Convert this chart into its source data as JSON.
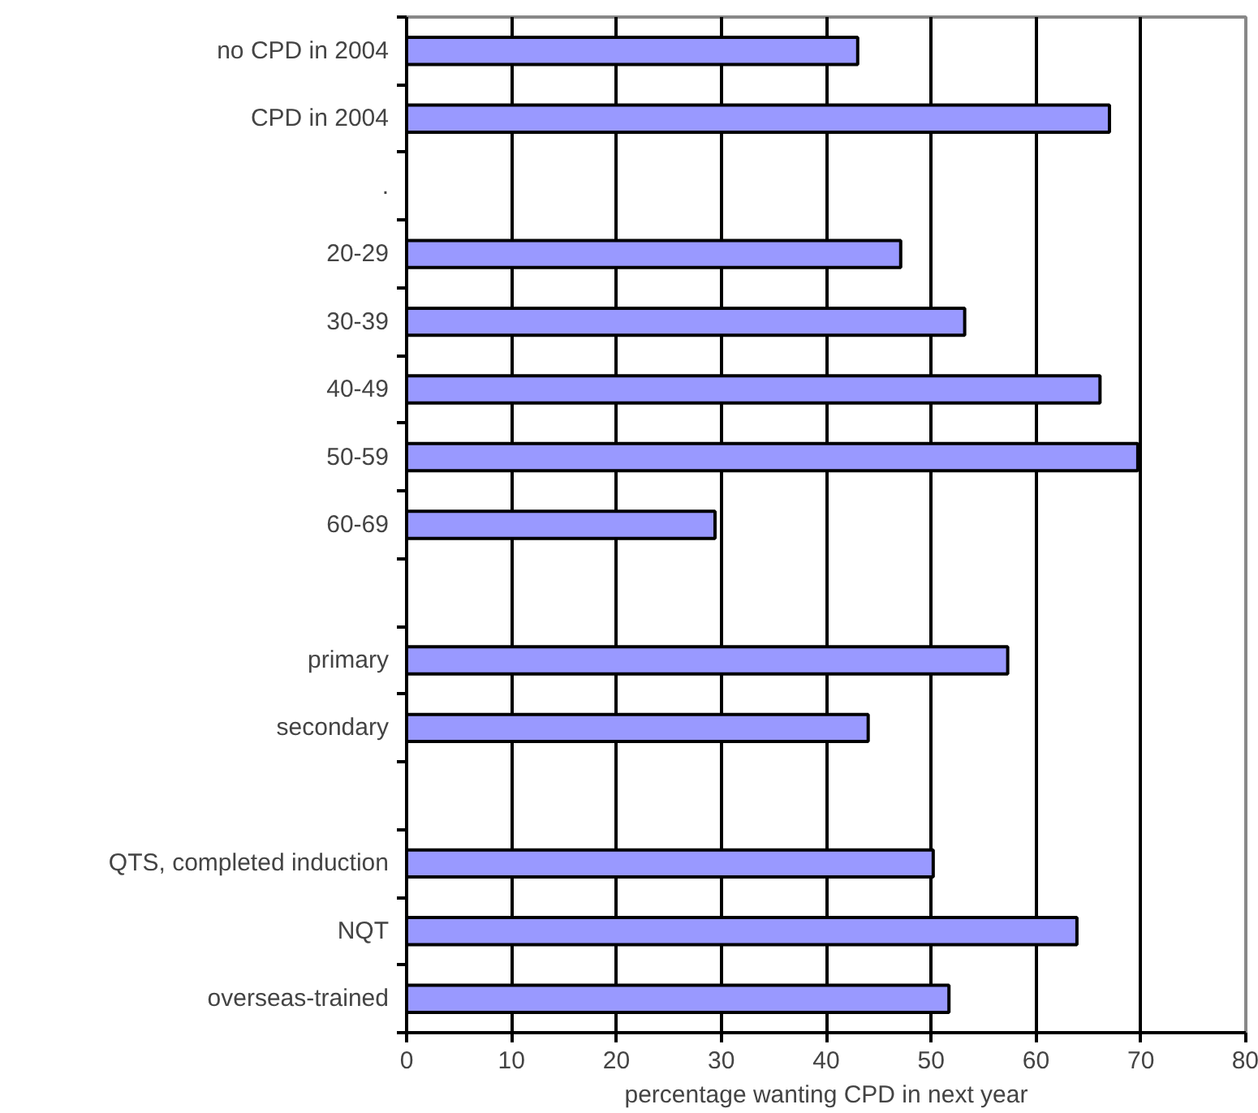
{
  "chart_data": {
    "type": "bar",
    "orientation": "horizontal",
    "categories": [
      "no CPD in 2004",
      "CPD in 2004",
      ".",
      "20-29",
      "30-39",
      "40-49",
      "50-59",
      "60-69",
      null,
      "primary",
      "secondary",
      null,
      "QTS, completed induction",
      "NQT",
      "overseas-trained"
    ],
    "values": [
      43.0,
      67.0,
      null,
      47.1,
      53.2,
      66.1,
      69.7,
      29.4,
      null,
      57.3,
      44.0,
      null,
      50.2,
      63.9,
      51.7
    ],
    "color": "#9999ff",
    "xlabel": "percentage wanting CPD in next year",
    "xlim": [
      0,
      80
    ],
    "xticks": [
      0,
      10,
      20,
      30,
      40,
      50,
      60,
      70,
      80
    ],
    "grid": "x"
  }
}
